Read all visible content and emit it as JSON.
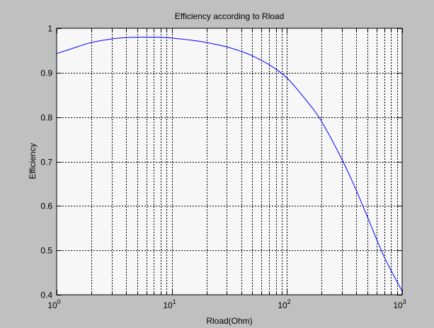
{
  "figure": {
    "background_color": "#c0c0c0",
    "axes_background_color": "#f7f7f7",
    "line_color": "#0000ff",
    "grid_color": "#000000"
  },
  "chart_data": {
    "type": "line",
    "title": "Efficiency according to Rload",
    "xlabel": "Rload(Ohm)",
    "ylabel": "Efficiency",
    "xscale": "log",
    "xlim": [
      1,
      1000
    ],
    "ylim": [
      0.4,
      1
    ],
    "grid": true,
    "x_tick_labels": [
      {
        "value": 1,
        "base": "10",
        "exponent": "0"
      },
      {
        "value": 10,
        "base": "10",
        "exponent": "1"
      },
      {
        "value": 100,
        "base": "10",
        "exponent": "2"
      },
      {
        "value": 1000,
        "base": "10",
        "exponent": "3"
      }
    ],
    "y_ticks": [
      0.4,
      0.5,
      0.6,
      0.7,
      0.8,
      0.9,
      1
    ],
    "y_tick_labels": [
      "0.4",
      "0.5",
      "0.6",
      "0.7",
      "0.8",
      "0.9",
      "1"
    ],
    "series": [
      {
        "x": [
          1,
          1.5,
          2,
          3,
          4,
          5,
          6,
          8,
          10,
          15,
          20,
          30,
          40,
          50,
          70,
          100,
          150,
          200,
          300,
          400,
          500,
          700,
          1000
        ],
        "y": [
          0.943,
          0.958,
          0.968,
          0.976,
          0.979,
          0.98,
          0.98,
          0.98,
          0.978,
          0.973,
          0.968,
          0.958,
          0.948,
          0.938,
          0.918,
          0.888,
          0.835,
          0.79,
          0.705,
          0.635,
          0.575,
          0.485,
          0.408
        ]
      }
    ]
  }
}
